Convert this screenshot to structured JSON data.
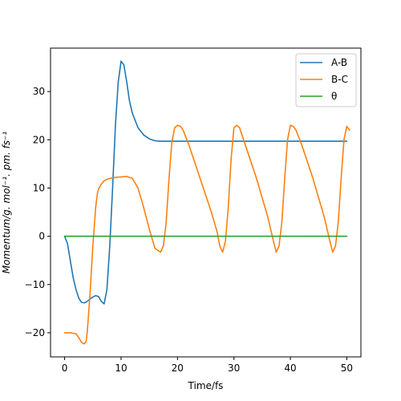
{
  "chart_data": {
    "type": "line",
    "title": "",
    "xlabel": "Time/fs",
    "ylabel": "Momentum/g. mol⁻¹. pm. fs⁻¹",
    "xlim": [
      -2.5,
      52.5
    ],
    "ylim": [
      -25,
      39
    ],
    "xticks": [
      0,
      10,
      20,
      30,
      40,
      50
    ],
    "yticks": [
      -20,
      -10,
      0,
      10,
      20,
      30
    ],
    "grid": false,
    "legend_position": "top-right",
    "series": [
      {
        "name": "A-B",
        "color": "#1f77b4",
        "x": [
          0,
          0.5,
          1,
          1.5,
          2,
          2.5,
          3,
          3.5,
          4,
          4.5,
          5,
          5.5,
          6,
          6.5,
          7,
          7.5,
          8,
          8.5,
          9,
          9.5,
          10,
          10.5,
          11,
          11.5,
          12,
          13,
          14,
          15,
          16,
          17,
          18,
          20,
          25,
          30,
          35,
          40,
          45,
          50
        ],
        "y": [
          0,
          -1.5,
          -5,
          -8.5,
          -11,
          -12.8,
          -13.7,
          -13.8,
          -13.5,
          -13,
          -12.6,
          -12.3,
          -12.5,
          -13.5,
          -14,
          -11,
          -2,
          10,
          23,
          32,
          36.3,
          35.5,
          32,
          28,
          25.5,
          22.5,
          21,
          20.2,
          19.8,
          19.7,
          19.7,
          19.7,
          19.7,
          19.7,
          19.7,
          19.7,
          19.7,
          19.7
        ]
      },
      {
        "name": "B-C",
        "color": "#ff7f0e",
        "x": [
          0,
          1,
          2,
          2.5,
          3,
          3.5,
          3.8,
          4,
          4.5,
          5,
          5.5,
          5.8,
          6,
          6.5,
          7,
          7.5,
          8,
          8.5,
          9,
          10,
          11,
          12,
          13,
          14,
          15,
          16,
          17,
          17.5,
          18,
          18.5,
          19,
          19.5,
          20,
          20.5,
          21,
          22,
          24,
          26,
          27,
          27.5,
          28,
          28.5,
          29,
          29.5,
          30,
          30.5,
          31,
          32,
          34,
          36,
          37,
          37.5,
          38,
          38.5,
          39,
          39.5,
          40,
          40.5,
          41,
          42,
          44,
          46,
          47,
          47.5,
          48,
          48.5,
          49,
          49.5,
          50,
          50.5
        ],
        "y": [
          -20,
          -20,
          -20.2,
          -21,
          -22,
          -22.3,
          -21.8,
          -20,
          -12,
          -2,
          6,
          8.8,
          9.8,
          10.8,
          11.5,
          11.8,
          12,
          12.1,
          12.2,
          12.3,
          12.4,
          12,
          10,
          6,
          1.5,
          -2.5,
          -3.3,
          -2,
          3,
          12,
          19.5,
          22.5,
          23,
          22.8,
          22,
          19,
          12,
          5,
          1,
          -2,
          -3.3,
          -1,
          6,
          16,
          22.5,
          23,
          22.5,
          19,
          12,
          4,
          -1,
          -3.3,
          -2,
          3,
          12,
          20,
          23,
          22.8,
          22,
          19,
          12,
          4,
          -1,
          -3.3,
          -2,
          3,
          12,
          20,
          22.8,
          22
        ]
      },
      {
        "name": "θ",
        "color": "#2ca02c",
        "x": [
          0,
          50
        ],
        "y": [
          0,
          0
        ]
      }
    ]
  }
}
